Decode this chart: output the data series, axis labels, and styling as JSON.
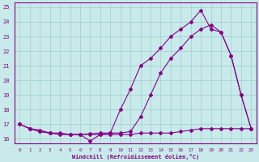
{
  "xlabel": "Windchill (Refroidissement éolien,°C)",
  "xlim": [
    -0.5,
    23.5
  ],
  "ylim": [
    15.7,
    25.3
  ],
  "xticks": [
    0,
    1,
    2,
    3,
    4,
    5,
    6,
    7,
    8,
    9,
    10,
    11,
    12,
    13,
    14,
    15,
    16,
    17,
    18,
    19,
    20,
    21,
    22,
    23
  ],
  "yticks": [
    16,
    17,
    18,
    19,
    20,
    21,
    22,
    23,
    24,
    25
  ],
  "background_color": "#c8eaea",
  "grid_color": "#a0cccc",
  "line_color": "#880088",
  "line1_x": [
    0,
    1,
    2,
    3,
    4,
    5,
    6,
    7,
    8,
    9,
    10,
    11,
    12,
    13,
    14,
    15,
    16,
    17,
    18,
    19,
    20,
    21,
    22,
    23
  ],
  "line1_y": [
    17.0,
    16.7,
    16.6,
    16.4,
    16.4,
    16.3,
    16.3,
    15.85,
    16.3,
    16.4,
    18.0,
    19.4,
    21.0,
    21.5,
    22.2,
    23.0,
    23.5,
    24.0,
    24.8,
    23.5,
    23.3,
    21.7,
    19.0,
    16.7
  ],
  "line2_x": [
    0,
    1,
    2,
    3,
    4,
    5,
    6,
    7,
    8,
    9,
    10,
    11,
    12,
    13,
    14,
    15,
    16,
    17,
    18,
    19,
    20,
    21,
    22,
    23
  ],
  "line2_y": [
    17.0,
    16.7,
    16.5,
    16.4,
    16.35,
    16.3,
    16.3,
    16.35,
    16.4,
    16.4,
    16.4,
    16.5,
    17.5,
    19.0,
    20.5,
    21.5,
    22.2,
    23.0,
    23.5,
    23.8,
    23.3,
    21.7,
    19.0,
    16.7
  ],
  "line3_x": [
    0,
    1,
    2,
    3,
    4,
    5,
    6,
    7,
    8,
    9,
    10,
    11,
    12,
    13,
    14,
    15,
    16,
    17,
    18,
    19,
    20,
    21,
    22,
    23
  ],
  "line3_y": [
    17.0,
    16.7,
    16.5,
    16.4,
    16.3,
    16.3,
    16.3,
    16.3,
    16.3,
    16.3,
    16.3,
    16.3,
    16.4,
    16.4,
    16.4,
    16.4,
    16.5,
    16.6,
    16.7,
    16.7,
    16.7,
    16.7,
    16.7,
    16.7
  ]
}
